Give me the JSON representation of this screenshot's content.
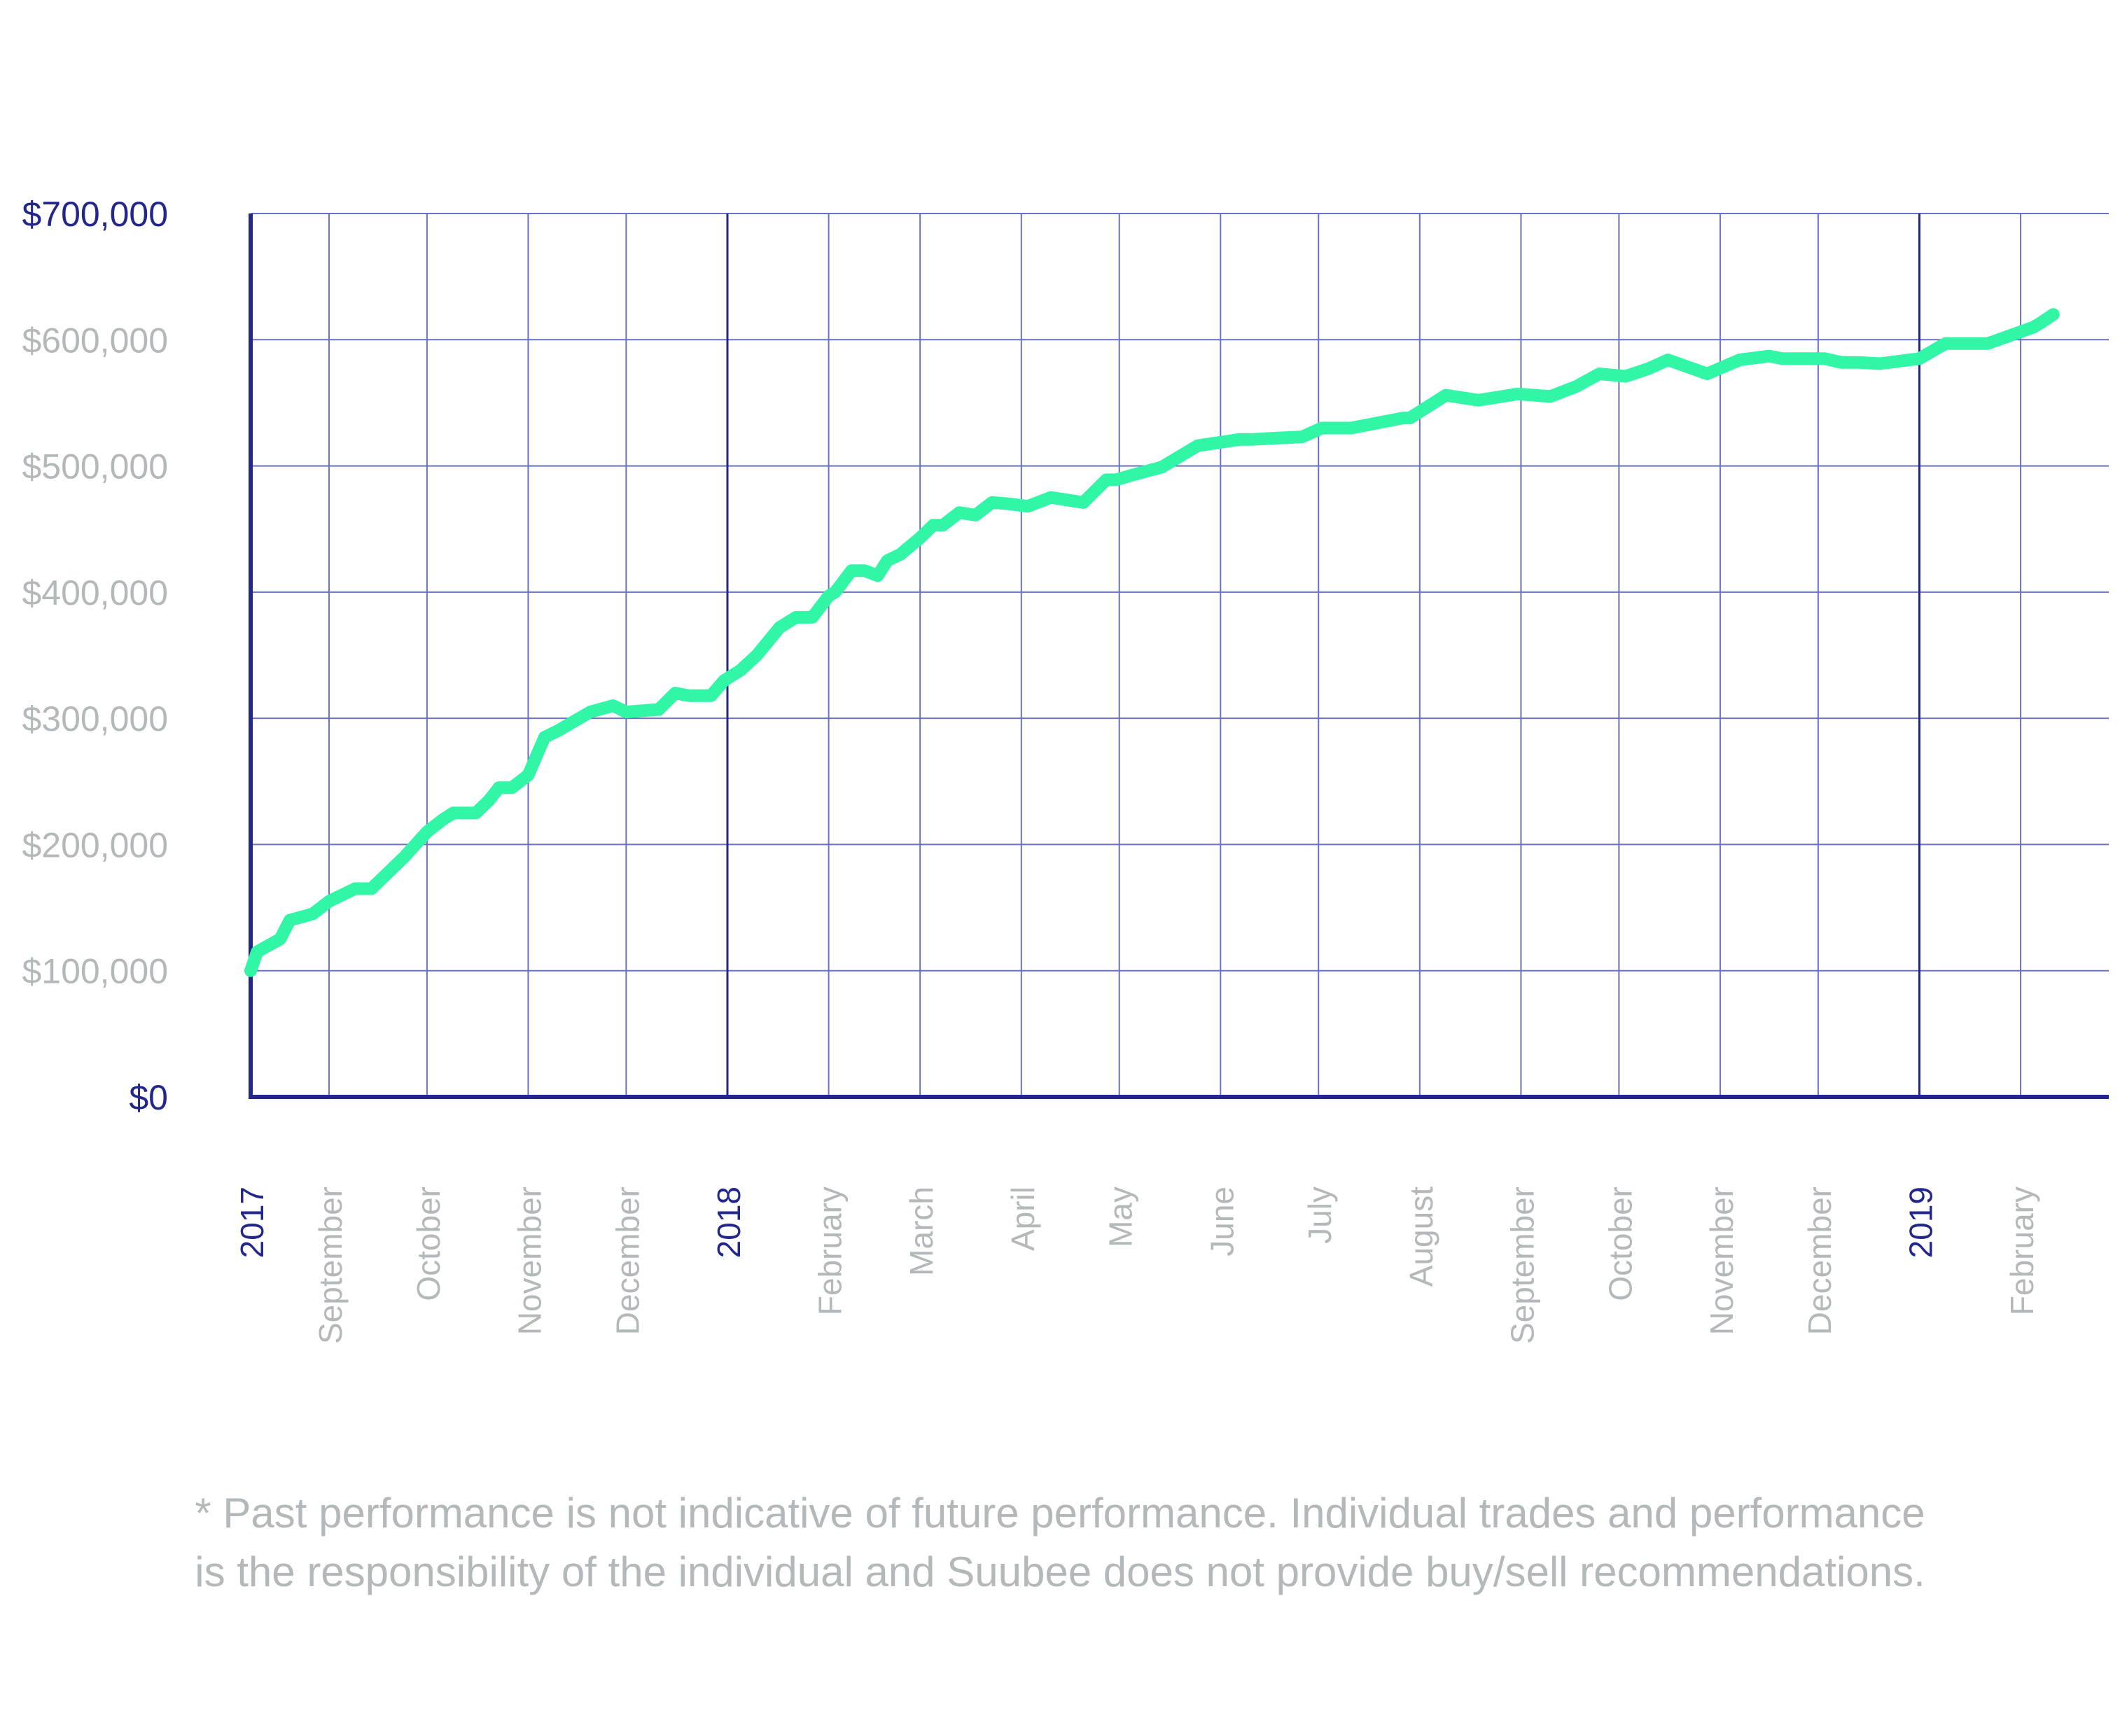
{
  "chart_data": {
    "type": "line",
    "title": "",
    "xlabel": "",
    "ylabel": "",
    "ylim": [
      0,
      700000
    ],
    "grid": true,
    "legend": "none",
    "y_ticks": [
      {
        "value": 0,
        "label": "$0"
      },
      {
        "value": 100000,
        "label": "$100,000"
      },
      {
        "value": 200000,
        "label": "$200,000"
      },
      {
        "value": 300000,
        "label": "$300,000"
      },
      {
        "value": 400000,
        "label": "$400,000"
      },
      {
        "value": 500000,
        "label": "$500,000"
      },
      {
        "value": 600000,
        "label": "$600,000"
      },
      {
        "value": 700000,
        "label": "$700,000"
      }
    ],
    "xlim": [
      "2017-08-08",
      "2019-02-28"
    ],
    "x_ticks": [
      {
        "date": "2017-08-08",
        "label": "2017"
      },
      {
        "date": "2017-09-01",
        "label": "September"
      },
      {
        "date": "2017-10-01",
        "label": "October"
      },
      {
        "date": "2017-11-01",
        "label": "November"
      },
      {
        "date": "2017-12-01",
        "label": "December"
      },
      {
        "date": "2018-01-01",
        "label": "2018"
      },
      {
        "date": "2018-02-01",
        "label": "February"
      },
      {
        "date": "2018-03-01",
        "label": "March"
      },
      {
        "date": "2018-04-01",
        "label": "April"
      },
      {
        "date": "2018-05-01",
        "label": "May"
      },
      {
        "date": "2018-06-01",
        "label": "June"
      },
      {
        "date": "2018-07-01",
        "label": "July"
      },
      {
        "date": "2018-08-01",
        "label": "August"
      },
      {
        "date": "2018-09-01",
        "label": "September"
      },
      {
        "date": "2018-10-01",
        "label": "October"
      },
      {
        "date": "2018-11-01",
        "label": "November"
      },
      {
        "date": "2018-12-01",
        "label": "December"
      },
      {
        "date": "2019-01-01",
        "label": "2019"
      },
      {
        "date": "2019-02-01",
        "label": "February"
      }
    ],
    "series": [
      {
        "color": "#31f6a6",
        "x": [
          "2017-08-08",
          "2017-08-10",
          "2017-08-17",
          "2017-08-20",
          "2017-08-27",
          "2017-09-01",
          "2017-09-09",
          "2017-09-14",
          "2017-09-24",
          "2017-10-01",
          "2017-10-06",
          "2017-10-09",
          "2017-10-16",
          "2017-10-20",
          "2017-10-23",
          "2017-10-27",
          "2017-11-01",
          "2017-11-06",
          "2017-11-10",
          "2017-11-20",
          "2017-11-27",
          "2017-12-01",
          "2017-12-11",
          "2017-12-16",
          "2017-12-20",
          "2017-12-27",
          "2017-12-31",
          "2018-01-05",
          "2018-01-10",
          "2018-01-17",
          "2018-01-22",
          "2018-01-27",
          "2018-02-01",
          "2018-02-03",
          "2018-02-08",
          "2018-02-12",
          "2018-02-16",
          "2018-02-19",
          "2018-02-23",
          "2018-03-01",
          "2018-03-05",
          "2018-03-08",
          "2018-03-13",
          "2018-03-18",
          "2018-03-23",
          "2018-03-28",
          "2018-04-03",
          "2018-04-10",
          "2018-04-20",
          "2018-04-27",
          "2018-04-30",
          "2018-05-04",
          "2018-05-11",
          "2018-05-14",
          "2018-05-25",
          "2018-06-07",
          "2018-06-11",
          "2018-06-18",
          "2018-06-26",
          "2018-07-02",
          "2018-07-11",
          "2018-07-27",
          "2018-07-29",
          "2018-08-09",
          "2018-08-19",
          "2018-08-31",
          "2018-09-10",
          "2018-09-18",
          "2018-09-25",
          "2018-10-03",
          "2018-10-10",
          "2018-10-16",
          "2018-10-28",
          "2018-11-07",
          "2018-11-16",
          "2018-11-20",
          "2018-11-27",
          "2018-12-03",
          "2018-12-08",
          "2018-12-13",
          "2018-12-20",
          "2019-01-01",
          "2019-01-09",
          "2019-01-22",
          "2019-02-05",
          "2019-02-07",
          "2019-02-11"
        ],
        "y": [
          100000,
          115000,
          125000,
          140000,
          145000,
          155000,
          165000,
          165000,
          190000,
          210000,
          220000,
          225000,
          225000,
          235000,
          245000,
          245000,
          255000,
          285000,
          290000,
          305000,
          310000,
          305000,
          307000,
          320000,
          318000,
          318000,
          330000,
          338000,
          350000,
          372000,
          380000,
          380000,
          397000,
          400000,
          417000,
          417000,
          413000,
          425000,
          430000,
          443000,
          453000,
          453000,
          463000,
          461000,
          471000,
          470000,
          468000,
          475000,
          471000,
          489000,
          489000,
          492000,
          497000,
          499000,
          516000,
          521000,
          521000,
          522000,
          523000,
          530000,
          530000,
          538000,
          538000,
          556000,
          552000,
          557000,
          555000,
          563000,
          573000,
          571000,
          577000,
          584000,
          573000,
          584000,
          587000,
          585000,
          585000,
          585000,
          582000,
          582000,
          581000,
          585000,
          597000,
          597000,
          610000,
          613000,
          620000
        ]
      }
    ]
  },
  "disclaimer": {
    "line1": "* Past performance is not indicative of future performance. Individual trades and performance",
    "line2": "is the responsibility of the individual and Suubee does not provide buy/sell recommendations."
  },
  "colors": {
    "axis": "#23278c",
    "grid": "#6a70c4",
    "line": "#31f6a6",
    "muted_text": "#b3b9ba",
    "year_text": "#23278c"
  }
}
